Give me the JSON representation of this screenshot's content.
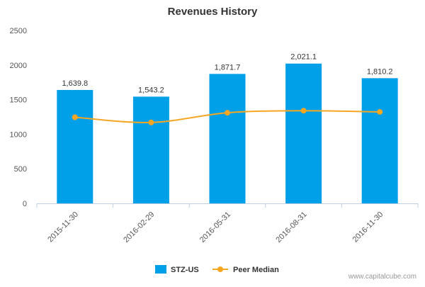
{
  "chart_data": {
    "type": "bar",
    "title": "Revenues History",
    "categories": [
      "2015-11-30",
      "2016-02-29",
      "2016-05-31",
      "2016-08-31",
      "2016-11-30"
    ],
    "series": [
      {
        "name": "STZ-US",
        "type": "bar",
        "color": "#00a0e9",
        "values": [
          1639.8,
          1543.2,
          1871.7,
          2021.1,
          1810.2
        ],
        "labels": [
          "1,639.8",
          "1,543.2",
          "1,871.7",
          "2,021.1",
          "1,810.2"
        ]
      },
      {
        "name": "Peer Median",
        "type": "line",
        "color": "#f5a623",
        "values": [
          1245,
          1170,
          1310,
          1340,
          1322
        ]
      }
    ],
    "ylim": [
      0,
      2500
    ],
    "yticks": [
      0,
      500,
      1000,
      1500,
      2000,
      2500
    ],
    "ytick_labels": [
      "0",
      "500",
      "1000",
      "1500",
      "2000",
      "2500"
    ],
    "grid": false,
    "legend_position": "bottom-center"
  },
  "credit": "www.capitalcube.com"
}
